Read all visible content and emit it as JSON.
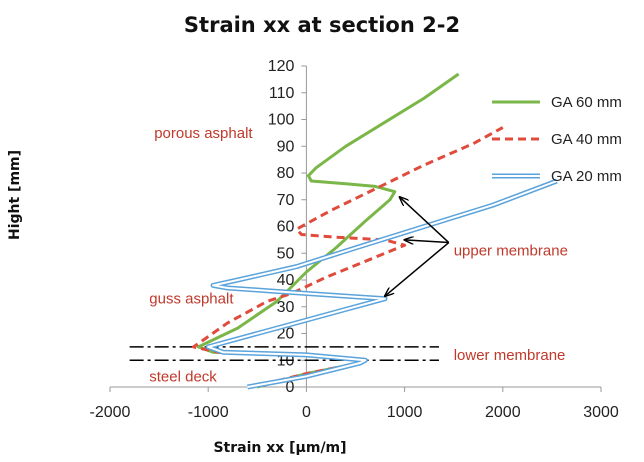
{
  "chart_data": {
    "type": "line",
    "title": "Strain xx at section 2-2",
    "xlabel": "Strain xx [µm/m]",
    "ylabel": "Hight [mm]",
    "xlim": [
      -2000,
      3000
    ],
    "ylim": [
      0,
      120
    ],
    "x_ticks": [
      "-2000",
      "-1000",
      "0",
      "1000",
      "2000",
      "3000"
    ],
    "y_ticks": [
      "0",
      "10",
      "20",
      "30",
      "40",
      "50",
      "60",
      "70",
      "80",
      "90",
      "100",
      "110",
      "120"
    ],
    "grid": false,
    "legend_position": "top-right",
    "series": [
      {
        "name": "GA 60 mm",
        "color": "#7ab648",
        "style": "solid",
        "points": [
          [
            -500,
            0
          ],
          [
            0,
            5
          ],
          [
            550,
            9
          ],
          [
            600,
            10
          ],
          [
            0,
            12
          ],
          [
            -950,
            13
          ],
          [
            -1100,
            15
          ],
          [
            -700,
            22
          ],
          [
            -300,
            32
          ],
          [
            0,
            43
          ],
          [
            300,
            52
          ],
          [
            600,
            62
          ],
          [
            850,
            70
          ],
          [
            900,
            73
          ],
          [
            700,
            75
          ],
          [
            400,
            76
          ],
          [
            50,
            77
          ],
          [
            20,
            79
          ],
          [
            100,
            82
          ],
          [
            400,
            90
          ],
          [
            800,
            99
          ],
          [
            1200,
            108
          ],
          [
            1550,
            117
          ]
        ]
      },
      {
        "name": "GA 40 mm",
        "color": "#e04b3c",
        "style": "dashed",
        "points": [
          [
            -550,
            0
          ],
          [
            0,
            5
          ],
          [
            550,
            9
          ],
          [
            600,
            10
          ],
          [
            0,
            12
          ],
          [
            -900,
            13
          ],
          [
            -1150,
            15
          ],
          [
            -800,
            24
          ],
          [
            -400,
            32
          ],
          [
            -150,
            35
          ],
          [
            200,
            41
          ],
          [
            600,
            47
          ],
          [
            1000,
            53
          ],
          [
            800,
            55
          ],
          [
            300,
            56
          ],
          [
            -50,
            57
          ],
          [
            -100,
            59
          ],
          [
            0,
            61
          ],
          [
            250,
            66
          ],
          [
            700,
            74
          ],
          [
            1200,
            83
          ],
          [
            1700,
            91
          ],
          [
            2000,
            97
          ]
        ]
      },
      {
        "name": "GA 20 mm",
        "color": "#5aa3db",
        "style": "double",
        "points": [
          [
            -600,
            0
          ],
          [
            0,
            4
          ],
          [
            550,
            9
          ],
          [
            600,
            10
          ],
          [
            0,
            12
          ],
          [
            -850,
            13
          ],
          [
            -1000,
            15
          ],
          [
            -500,
            20
          ],
          [
            0,
            25
          ],
          [
            400,
            29
          ],
          [
            800,
            33
          ],
          [
            400,
            34
          ],
          [
            -400,
            36
          ],
          [
            -800,
            37
          ],
          [
            -950,
            38
          ],
          [
            -700,
            40
          ],
          [
            -100,
            45
          ],
          [
            500,
            52
          ],
          [
            1200,
            60
          ],
          [
            1900,
            68
          ],
          [
            2550,
            77
          ]
        ]
      }
    ],
    "reference_lines": [
      {
        "y": 15,
        "x_range": [
          -1800,
          1350
        ],
        "color": "#000000",
        "style": "dash-dot"
      },
      {
        "y": 10,
        "x_range": [
          -1800,
          1350
        ],
        "color": "#000000",
        "style": "dash-dot"
      }
    ],
    "annotations": [
      {
        "text": "porous asphalt",
        "x": -1550,
        "y": 95
      },
      {
        "text": "guss asphalt",
        "x": -1600,
        "y": 33
      },
      {
        "text": "steel deck",
        "x": -1600,
        "y": 4
      },
      {
        "text": "upper membrane",
        "x": 1500,
        "y": 51
      },
      {
        "text": "lower membrane",
        "x": 1500,
        "y": 12
      }
    ],
    "arrows": [
      {
        "from": [
          1450,
          54
        ],
        "to": [
          950,
          71
        ]
      },
      {
        "from": [
          1450,
          54
        ],
        "to": [
          1000,
          55
        ]
      },
      {
        "from": [
          1450,
          54
        ],
        "to": [
          800,
          34
        ]
      }
    ]
  }
}
